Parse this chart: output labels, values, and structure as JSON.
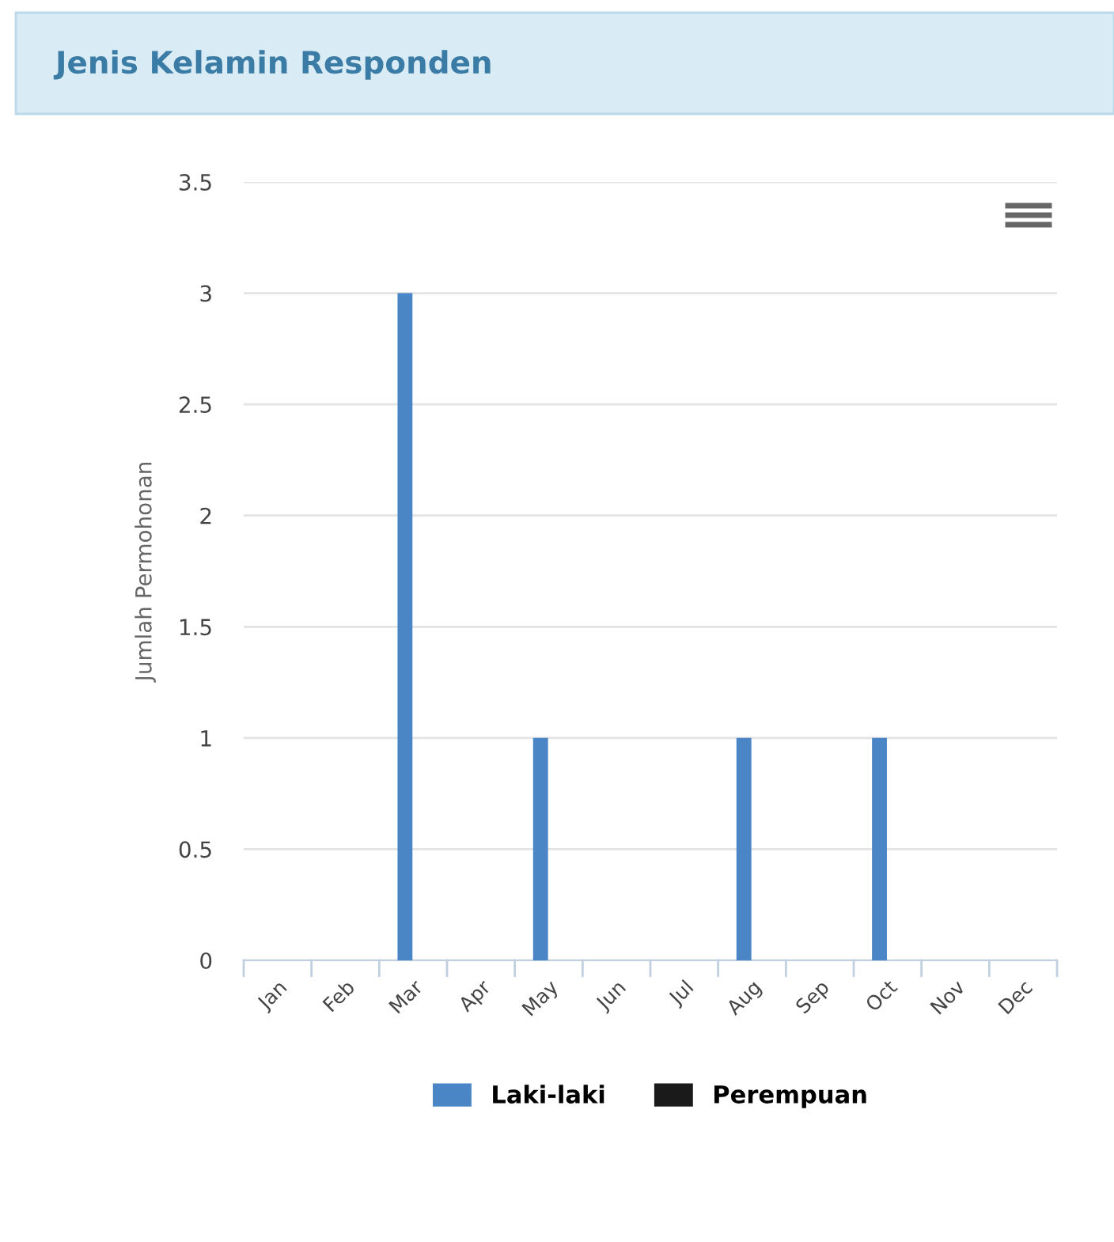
{
  "chart_data": {
    "type": "bar",
    "title": "Jenis Kelamin Responden",
    "ylabel": "Jumlah Permohonan",
    "categories": [
      "Jan",
      "Feb",
      "Mar",
      "Apr",
      "May",
      "Jun",
      "Jul",
      "Aug",
      "Sep",
      "Oct",
      "Nov",
      "Dec"
    ],
    "series": [
      {
        "name": "Laki-laki",
        "color": "#4a86c5",
        "values": [
          0,
          0,
          3,
          0,
          1,
          0,
          0,
          1,
          0,
          1,
          0,
          0
        ]
      },
      {
        "name": "Perempuan",
        "color": "#1a1a1a",
        "values": [
          0,
          0,
          0,
          0,
          0,
          0,
          0,
          0,
          0,
          0,
          0,
          0
        ]
      }
    ],
    "ylim": [
      0,
      3.5
    ],
    "yticks": [
      0,
      0.5,
      1,
      1.5,
      2,
      2.5,
      3,
      3.5
    ],
    "grid": "y",
    "legend": "bottom"
  }
}
